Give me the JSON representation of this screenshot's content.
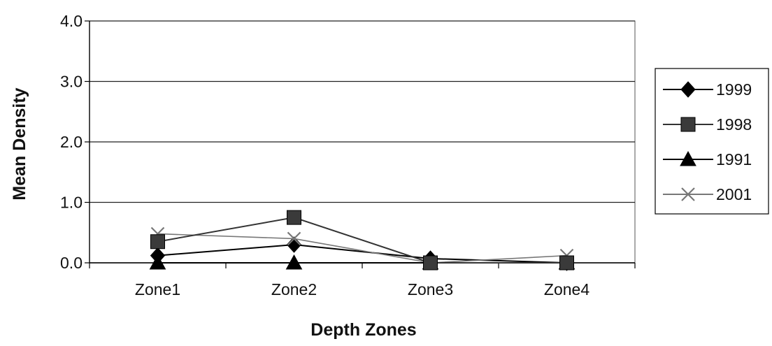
{
  "chart_data": {
    "type": "line",
    "title": "",
    "xlabel": "Depth Zones",
    "ylabel": "Mean Density",
    "categories": [
      "Zone1",
      "Zone2",
      "Zone3",
      "Zone4"
    ],
    "ylim": [
      0,
      4
    ],
    "yticks": [
      "0.0",
      "1.0",
      "2.0",
      "3.0",
      "4.0"
    ],
    "grid": true,
    "legend_position": "right",
    "series": [
      {
        "name": "1999",
        "values": [
          0.12,
          0.3,
          0.07,
          0.0
        ],
        "marker": "diamond",
        "color": "#000000"
      },
      {
        "name": "1998",
        "values": [
          0.35,
          0.75,
          0.0,
          0.0
        ],
        "marker": "square",
        "color": "#333333"
      },
      {
        "name": "1991",
        "values": [
          0.0,
          0.0,
          0.0,
          0.0
        ],
        "marker": "triangle",
        "color": "#000000"
      },
      {
        "name": "2001",
        "values": [
          0.48,
          0.4,
          0.0,
          0.12
        ],
        "marker": "cross",
        "color": "#777777"
      }
    ]
  }
}
